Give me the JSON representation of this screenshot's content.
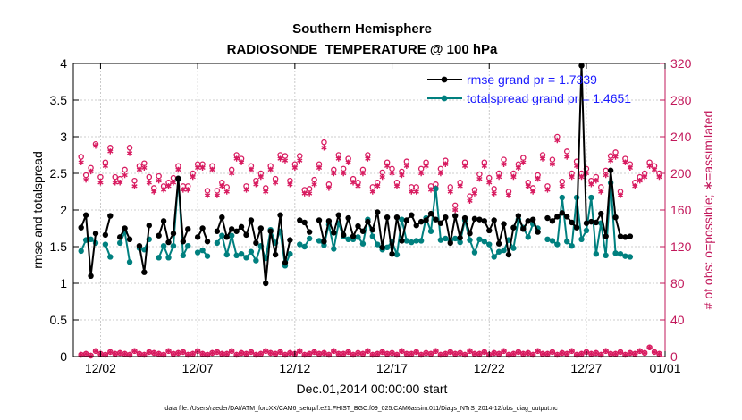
{
  "chart_data": {
    "type": "line",
    "title": "Southern Hemisphere",
    "subtitle": "RADIOSONDE_TEMPERATURE @ 100 hPa",
    "xlabel": "Dec.01,2014 00:00:00 start",
    "ylabel": "rmse and totalspread",
    "ylabel_right": "# of obs: o=possible; ∗=assimilated",
    "footnote": "data file: /Users/raeder/DAI/ATM_forcXX/CAM6_setup/f.e21.FHIST_BGC.f09_025.CAM6assim.011/Diags_NTrS_2014-12/obs_diag_output.nc",
    "xlim": [
      0.6,
      31.05
    ],
    "xticks": [
      2,
      7,
      12,
      17,
      22,
      27,
      32
    ],
    "xtick_labels": [
      "12/02",
      "12/07",
      "12/12",
      "12/17",
      "12/22",
      "12/27",
      "01/01"
    ],
    "ylim": [
      0,
      4
    ],
    "yticks": [
      0,
      0.5,
      1,
      1.5,
      2,
      2.5,
      3,
      3.5,
      4
    ],
    "ytick_labels": [
      "0",
      "0.5",
      "1",
      "1.5",
      "2",
      "2.5",
      "3",
      "3.5",
      "4"
    ],
    "ylim_right": [
      0,
      320
    ],
    "yticks_right": [
      0,
      40,
      80,
      120,
      160,
      200,
      240,
      280,
      320
    ],
    "ytick_labels_right": [
      "0",
      "40",
      "80",
      "120",
      "160",
      "200",
      "240",
      "280",
      "320"
    ],
    "colors": {
      "rmse": "#000000",
      "spread": "#00807f",
      "obs": "#d81b60",
      "right_axis": "#c2185b",
      "legend_text": "#1a1aff"
    },
    "series": [
      {
        "name": "rmse",
        "label": "rmse grand pr = 1.7339",
        "x": [
          1.0,
          1.25,
          1.5,
          1.75,
          2.0,
          2.25,
          2.5,
          2.75,
          3.0,
          3.25,
          3.5,
          3.75,
          4.0,
          4.25,
          4.5,
          4.75,
          5.0,
          5.25,
          5.5,
          5.75,
          6.0,
          6.25,
          6.5,
          6.75,
          7.0,
          7.25,
          7.5,
          7.75,
          8.0,
          8.25,
          8.5,
          8.75,
          9.0,
          9.25,
          9.5,
          9.75,
          10.0,
          10.25,
          10.5,
          10.75,
          11.0,
          11.25,
          11.5,
          11.75,
          12.0,
          12.25,
          12.5,
          12.75,
          13.0,
          13.25,
          13.5,
          13.75,
          14.0,
          14.25,
          14.5,
          14.75,
          15.0,
          15.25,
          15.5,
          15.75,
          16.0,
          16.25,
          16.5,
          16.75,
          17.0,
          17.25,
          17.5,
          17.75,
          18.0,
          18.25,
          18.5,
          18.75,
          19.0,
          19.25,
          19.5,
          19.75,
          20.0,
          20.25,
          20.5,
          20.75,
          21.0,
          21.25,
          21.5,
          21.75,
          22.0,
          22.25,
          22.5,
          22.75,
          23.0,
          23.25,
          23.5,
          23.75,
          24.0,
          24.25,
          24.5,
          24.75,
          25.0,
          25.25,
          25.5,
          25.75,
          26.0,
          26.25,
          26.5,
          26.75,
          27.0,
          27.25,
          27.5,
          27.75,
          28.0,
          28.25,
          28.5,
          28.75,
          29.0,
          29.25,
          29.5,
          29.75,
          30.0,
          30.25,
          30.5,
          30.75
        ],
        "values": [
          1.76,
          1.93,
          1.1,
          1.68,
          null,
          1.66,
          1.92,
          null,
          1.63,
          1.75,
          1.6,
          null,
          1.51,
          1.15,
          1.79,
          null,
          1.65,
          1.85,
          1.56,
          1.68,
          2.43,
          1.57,
          1.74,
          null,
          1.63,
          1.75,
          1.57,
          null,
          1.71,
          1.9,
          1.63,
          1.74,
          1.71,
          1.77,
          1.66,
          1.86,
          1.55,
          1.75,
          1.0,
          1.71,
          1.39,
          1.93,
          1.28,
          1.59,
          null,
          1.86,
          1.83,
          1.7,
          null,
          1.86,
          1.57,
          1.85,
          1.69,
          1.93,
          1.66,
          1.89,
          1.64,
          1.78,
          1.71,
          1.84,
          1.73,
          1.97,
          1.49,
          1.9,
          1.4,
          1.9,
          1.58,
          1.86,
          1.93,
          1.79,
          1.84,
          1.86,
          1.95,
          1.87,
          1.82,
          1.9,
          1.55,
          1.92,
          1.62,
          1.89,
          1.68,
          1.88,
          1.87,
          1.85,
          1.72,
          1.86,
          1.54,
          1.81,
          1.39,
          1.76,
          1.92,
          1.74,
          1.85,
          1.87,
          1.7,
          null,
          1.89,
          1.85,
          1.91,
          1.96,
          1.91,
          1.83,
          1.76,
          3.97,
          1.82,
          1.84,
          1.83,
          1.95,
          1.64,
          2.54,
          1.9,
          1.64,
          1.63,
          1.64,
          null,
          null,
          null,
          null,
          null,
          null
        ],
        "color": "#000000"
      },
      {
        "name": "totalspread",
        "label": "totalspread grand pr = 1.4651",
        "values": [
          1.44,
          1.59,
          1.6,
          1.55,
          null,
          1.53,
          1.36,
          null,
          1.55,
          1.7,
          1.29,
          null,
          1.48,
          1.46,
          1.6,
          null,
          1.35,
          1.51,
          1.35,
          1.51,
          2.42,
          1.38,
          1.51,
          null,
          1.42,
          1.45,
          1.37,
          null,
          1.55,
          1.65,
          1.39,
          1.65,
          1.38,
          1.4,
          1.35,
          1.43,
          1.31,
          1.51,
          1.34,
          1.73,
          1.55,
          1.71,
          1.24,
          1.4,
          null,
          1.53,
          1.5,
          1.61,
          null,
          1.58,
          1.52,
          1.8,
          1.47,
          1.82,
          1.64,
          1.6,
          1.6,
          1.63,
          1.54,
          1.87,
          1.64,
          1.53,
          1.46,
          1.49,
          1.57,
          1.39,
          1.87,
          1.58,
          1.56,
          1.58,
          1.58,
          1.89,
          1.71,
          2.29,
          1.59,
          1.61,
          1.58,
          1.61,
          1.56,
          1.86,
          1.59,
          1.42,
          1.6,
          1.57,
          1.53,
          1.36,
          1.43,
          1.45,
          1.59,
          1.48,
          1.87,
          1.76,
          1.63,
          1.81,
          1.75,
          null,
          1.6,
          1.58,
          1.53,
          2.17,
          1.57,
          1.51,
          2.17,
          1.6,
          1.72,
          2.17,
          1.4,
          1.82,
          1.38,
          2.37,
          1.41,
          1.4,
          1.37,
          1.36,
          null,
          null,
          null,
          null,
          null,
          null
        ],
        "color": "#00807f"
      },
      {
        "name": "obs_possible",
        "marker": "o",
        "values": [
          218,
          198,
          206,
          232,
          196,
          212,
          228,
          196,
          194,
          204,
          228,
          192,
          208,
          211,
          196,
          184,
          197,
          186,
          190,
          195,
          208,
          186,
          186,
          200,
          210,
          210,
          181,
          208,
          181,
          190,
          185,
          204,
          220,
          216,
          186,
          208,
          192,
          200,
          184,
          208,
          194,
          220,
          219,
          192,
          210,
          219,
          182,
          183,
          193,
          210,
          234,
          188,
          204,
          220,
          205,
          216,
          194,
          190,
          204,
          220,
          185,
          190,
          201,
          212,
          205,
          190,
          202,
          213,
          185,
          185,
          205,
          212,
          186,
          188,
          205,
          214,
          185,
          165,
          190,
          212,
          175,
          182,
          199,
          212,
          195,
          183,
          200,
          215,
          180,
          200,
          210,
          217,
          190,
          184,
          198,
          220,
          186,
          215,
          240,
          191,
          224,
          200,
          213,
          200,
          205,
          192,
          196,
          185,
          203,
          219,
          223,
          180,
          216,
          210,
          190,
          196,
          200,
          212,
          208,
          200
        ],
        "color": "#d81b60"
      },
      {
        "name": "obs_assimilated",
        "marker": "*",
        "values": [
          212,
          193,
          202,
          230,
          190,
          208,
          224,
          190,
          190,
          198,
          222,
          186,
          204,
          206,
          190,
          180,
          192,
          182,
          186,
          190,
          204,
          182,
          182,
          196,
          206,
          206,
          176,
          204,
          176,
          186,
          180,
          200,
          216,
          212,
          182,
          204,
          188,
          196,
          180,
          204,
          190,
          216,
          214,
          188,
          206,
          214,
          178,
          178,
          188,
          206,
          228,
          184,
          200,
          216,
          200,
          212,
          190,
          186,
          200,
          216,
          180,
          186,
          196,
          208,
          200,
          186,
          198,
          208,
          180,
          180,
          200,
          208,
          182,
          184,
          200,
          210,
          180,
          160,
          186,
          208,
          170,
          178,
          194,
          208,
          190,
          178,
          196,
          210,
          176,
          196,
          206,
          212,
          186,
          180,
          194,
          216,
          182,
          210,
          236,
          186,
          218,
          196,
          208,
          196,
          200,
          188,
          192,
          180,
          198,
          214,
          218,
          176,
          212,
          206,
          186,
          192,
          196,
          208,
          204,
          196
        ],
        "color": "#d81b60"
      },
      {
        "name": "obs_bottom",
        "marker": "o*",
        "values": [
          2,
          3,
          1,
          6,
          3,
          2,
          5,
          3,
          4,
          3,
          2,
          6,
          3,
          2,
          5,
          4,
          3,
          2,
          6,
          3,
          4,
          5,
          2,
          3,
          6,
          3,
          2,
          4,
          5,
          3,
          3,
          6,
          2,
          4,
          3,
          5,
          2,
          3,
          6,
          4,
          3,
          5,
          2,
          4,
          3,
          6,
          2,
          3,
          5,
          3,
          4,
          2,
          6,
          3,
          3,
          5,
          2,
          4,
          3,
          6,
          2,
          3,
          5,
          3,
          4,
          2,
          6,
          3,
          3,
          5,
          2,
          4,
          3,
          6,
          2,
          3,
          5,
          3,
          4,
          2,
          6,
          3,
          3,
          5,
          2,
          4,
          3,
          6,
          2,
          3,
          5,
          3,
          4,
          2,
          6,
          3,
          3,
          5,
          2,
          4,
          3,
          6,
          2,
          3,
          5,
          3,
          4,
          2,
          6,
          3,
          3,
          5,
          2,
          4,
          3,
          6,
          4,
          10,
          5,
          3
        ],
        "color": "#d81b60"
      }
    ]
  }
}
